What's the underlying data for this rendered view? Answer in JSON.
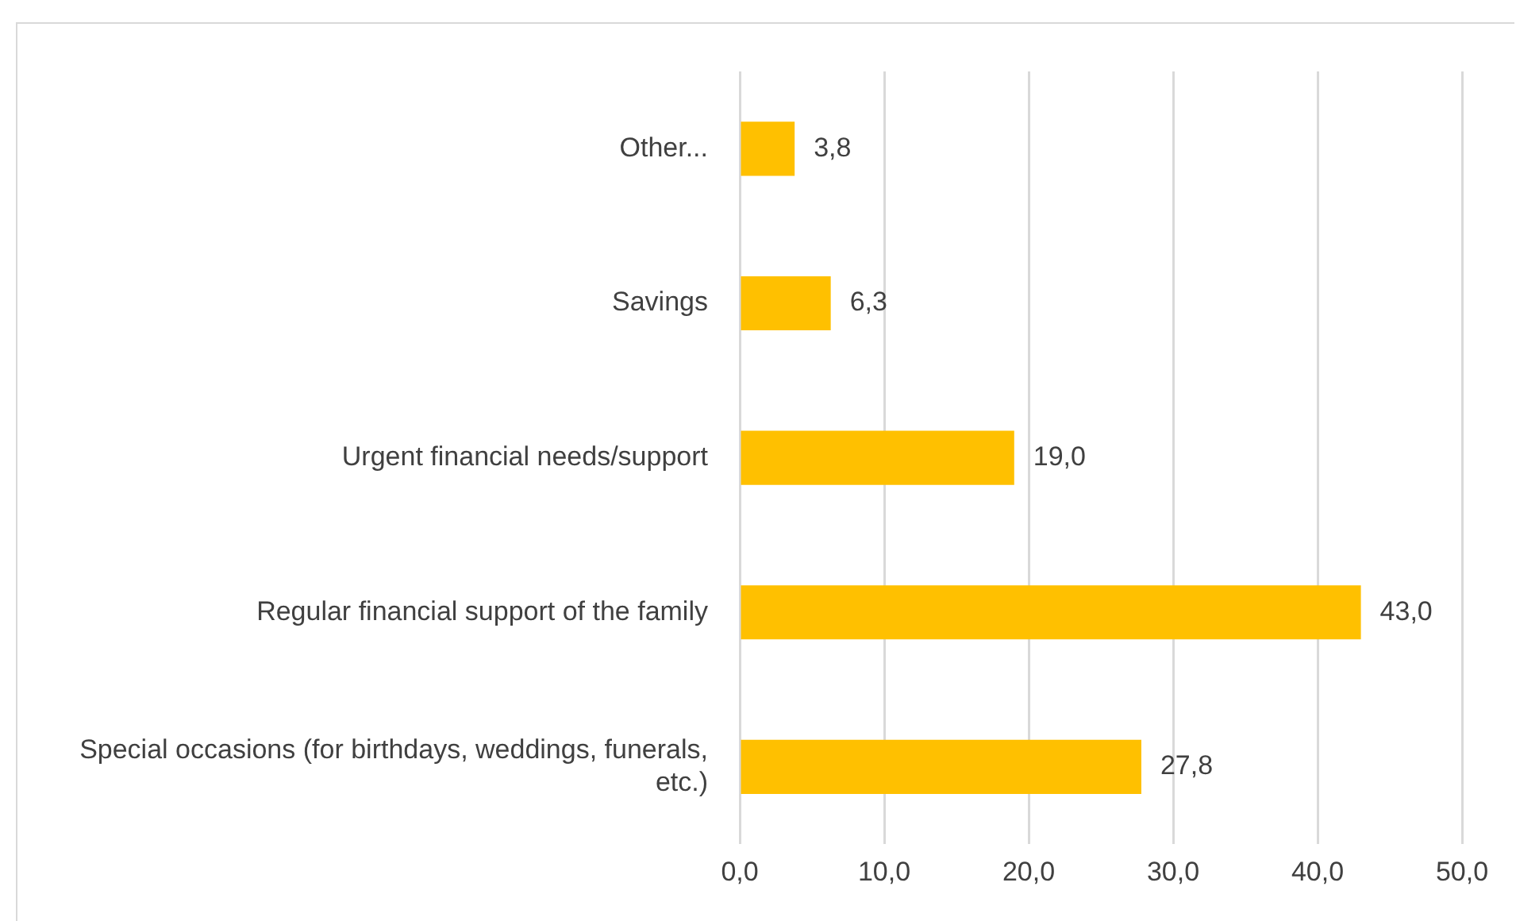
{
  "chart_data": {
    "type": "bar",
    "orientation": "horizontal",
    "categories": [
      "Other...",
      "Savings",
      "Urgent financial needs/support",
      "Regular financial support of the family",
      "Special occasions (for birthdays, weddings, funerals, etc.)"
    ],
    "values": [
      3.8,
      6.3,
      19.0,
      43.0,
      27.8
    ],
    "value_labels": [
      "3,8",
      "6,3",
      "19,0",
      "43,0",
      "27,8"
    ],
    "color": "#ffc000",
    "xlim": [
      0,
      50
    ],
    "xticks": [
      {
        "value": 0,
        "label": "0,0"
      },
      {
        "value": 10,
        "label": "10,0"
      },
      {
        "value": 20,
        "label": "20,0"
      },
      {
        "value": 30,
        "label": "30,0"
      },
      {
        "value": 40,
        "label": "40,0"
      },
      {
        "value": 50,
        "label": "50,0"
      }
    ],
    "grid": "x",
    "legend": false
  }
}
